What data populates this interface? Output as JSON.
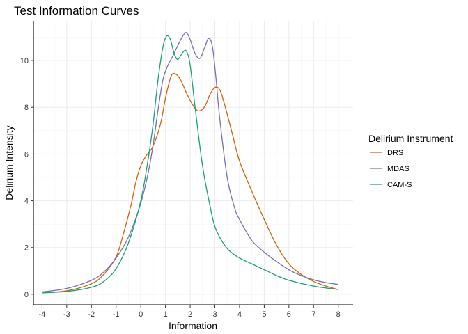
{
  "chart_data": {
    "type": "line",
    "title": "Test Information Curves",
    "xlabel": "Information",
    "ylabel": "Delirium Intensity",
    "xlim": [
      -4.35,
      8.6
    ],
    "ylim": [
      -0.45,
      11.7
    ],
    "x_ticks": [
      -4,
      -3,
      -2,
      -1,
      0,
      1,
      2,
      3,
      4,
      5,
      6,
      7,
      8
    ],
    "y_ticks": [
      0,
      2,
      4,
      6,
      8,
      10
    ],
    "grid": true,
    "legend": {
      "title": "Delirium Instrument",
      "position": "right"
    },
    "series": [
      {
        "name": "DRS",
        "color": "#d95f02",
        "x": [
          -4,
          -3,
          -2,
          -1.5,
          -1,
          -0.7,
          -0.4,
          -0.2,
          0,
          0.2,
          0.5,
          0.8,
          1,
          1.2,
          1.35,
          1.6,
          1.9,
          2.2,
          2.4,
          2.6,
          2.8,
          3,
          3.2,
          3.4,
          3.7,
          4,
          4.5,
          5,
          5.5,
          6,
          6.5,
          7,
          7.5,
          8
        ],
        "y": [
          0.06,
          0.15,
          0.45,
          0.85,
          1.6,
          2.6,
          3.8,
          4.8,
          5.5,
          5.9,
          6.35,
          7.3,
          8.4,
          9.25,
          9.45,
          9.2,
          8.5,
          7.95,
          7.85,
          8.05,
          8.55,
          8.85,
          8.75,
          8.1,
          6.9,
          5.7,
          4.4,
          3.2,
          2.1,
          1.3,
          0.85,
          0.55,
          0.35,
          0.2
        ]
      },
      {
        "name": "MDAS",
        "color": "#7570b3",
        "x": [
          -4,
          -3,
          -2,
          -1.5,
          -1,
          -0.5,
          0,
          0.3,
          0.5,
          0.7,
          0.9,
          1.1,
          1.3,
          1.5,
          1.7,
          1.85,
          2,
          2.2,
          2.4,
          2.6,
          2.75,
          2.9,
          3.05,
          3.2,
          3.5,
          3.8,
          4,
          4.5,
          5,
          5.5,
          6,
          6.5,
          7,
          7.5,
          8
        ],
        "y": [
          0.1,
          0.25,
          0.6,
          0.95,
          1.55,
          2.45,
          3.9,
          5.2,
          6.4,
          7.9,
          9.2,
          9.8,
          10.2,
          10.65,
          11.05,
          11.2,
          10.9,
          10.3,
          10.1,
          10.6,
          10.95,
          10.6,
          9.2,
          7.5,
          5.0,
          3.7,
          3.2,
          2.3,
          1.8,
          1.4,
          1.05,
          0.8,
          0.62,
          0.5,
          0.42
        ]
      },
      {
        "name": "CAM-S",
        "color": "#1b9e77",
        "x": [
          -4,
          -3,
          -2,
          -1.5,
          -1,
          -0.5,
          0,
          0.3,
          0.5,
          0.7,
          0.9,
          1.05,
          1.2,
          1.35,
          1.5,
          1.7,
          1.85,
          2,
          2.2,
          2.5,
          2.8,
          3,
          3.3,
          3.6,
          4,
          4.5,
          5,
          5.5,
          6,
          7,
          8
        ],
        "y": [
          0.06,
          0.12,
          0.3,
          0.55,
          1.1,
          2.2,
          4.0,
          5.8,
          7.3,
          9.2,
          10.6,
          11.05,
          10.9,
          10.3,
          10.05,
          10.35,
          10.4,
          9.8,
          8.0,
          5.5,
          3.8,
          2.9,
          2.25,
          1.85,
          1.55,
          1.3,
          1.05,
          0.8,
          0.6,
          0.35,
          0.2
        ]
      }
    ]
  }
}
